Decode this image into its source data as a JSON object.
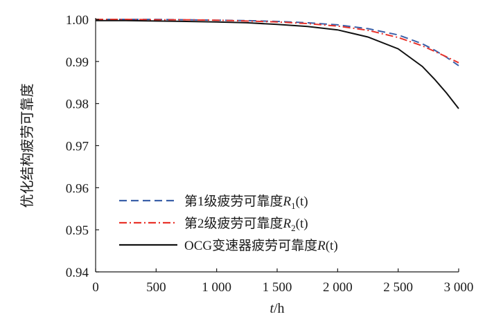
{
  "chart_data": {
    "type": "line",
    "ylabel": "优化结构疲劳可靠度",
    "xlabel_italic": "t",
    "xlabel_rest": "/h",
    "xlim": [
      0,
      3000
    ],
    "ylim": [
      0.94,
      1.0
    ],
    "x_ticks": [
      0,
      500,
      1000,
      1500,
      2000,
      2500,
      3000
    ],
    "x_tick_labels": [
      "0",
      "500",
      "1 000",
      "1 500",
      "2 000",
      "2 500",
      "3 000"
    ],
    "y_ticks": [
      0.94,
      0.95,
      0.96,
      0.97,
      0.98,
      0.99,
      1.0
    ],
    "y_tick_labels": [
      "0.94",
      "0.95",
      "0.96",
      "0.97",
      "0.98",
      "0.99",
      "1.00"
    ],
    "legend_position": "bottom-left",
    "x": [
      0,
      250,
      500,
      750,
      1000,
      1250,
      1500,
      1750,
      2000,
      2250,
      2500,
      2700,
      2800,
      2900,
      3000
    ],
    "series": [
      {
        "legend_prefix": "第1级疲劳可靠度",
        "legend_symbol": "R",
        "legend_subscript": "1",
        "legend_suffix": "(t)",
        "color": "#3a5fa8",
        "dash": "dash",
        "values": [
          1.0,
          1.0,
          1.0,
          0.9999,
          0.9998,
          0.9997,
          0.9995,
          0.9992,
          0.9987,
          0.9978,
          0.9963,
          0.9942,
          0.9927,
          0.991,
          0.989
        ]
      },
      {
        "legend_prefix": "第2级疲劳可靠度",
        "legend_symbol": "R",
        "legend_subscript": "2",
        "legend_suffix": "(t)",
        "color": "#e8322a",
        "dash": "dashdot",
        "values": [
          1.0,
          1.0,
          0.9999,
          0.9999,
          0.9998,
          0.9996,
          0.9994,
          0.999,
          0.9984,
          0.9974,
          0.9957,
          0.9937,
          0.9924,
          0.9911,
          0.9897
        ]
      },
      {
        "legend_prefix": "OCG变速器疲劳可靠度",
        "legend_symbol": "R",
        "legend_subscript": "",
        "legend_suffix": "(t)",
        "color": "#111111",
        "dash": "solid",
        "values": [
          0.9997,
          0.9997,
          0.9996,
          0.9995,
          0.9994,
          0.9992,
          0.9988,
          0.9983,
          0.9975,
          0.9958,
          0.993,
          0.9888,
          0.9858,
          0.9825,
          0.9788
        ]
      }
    ]
  }
}
